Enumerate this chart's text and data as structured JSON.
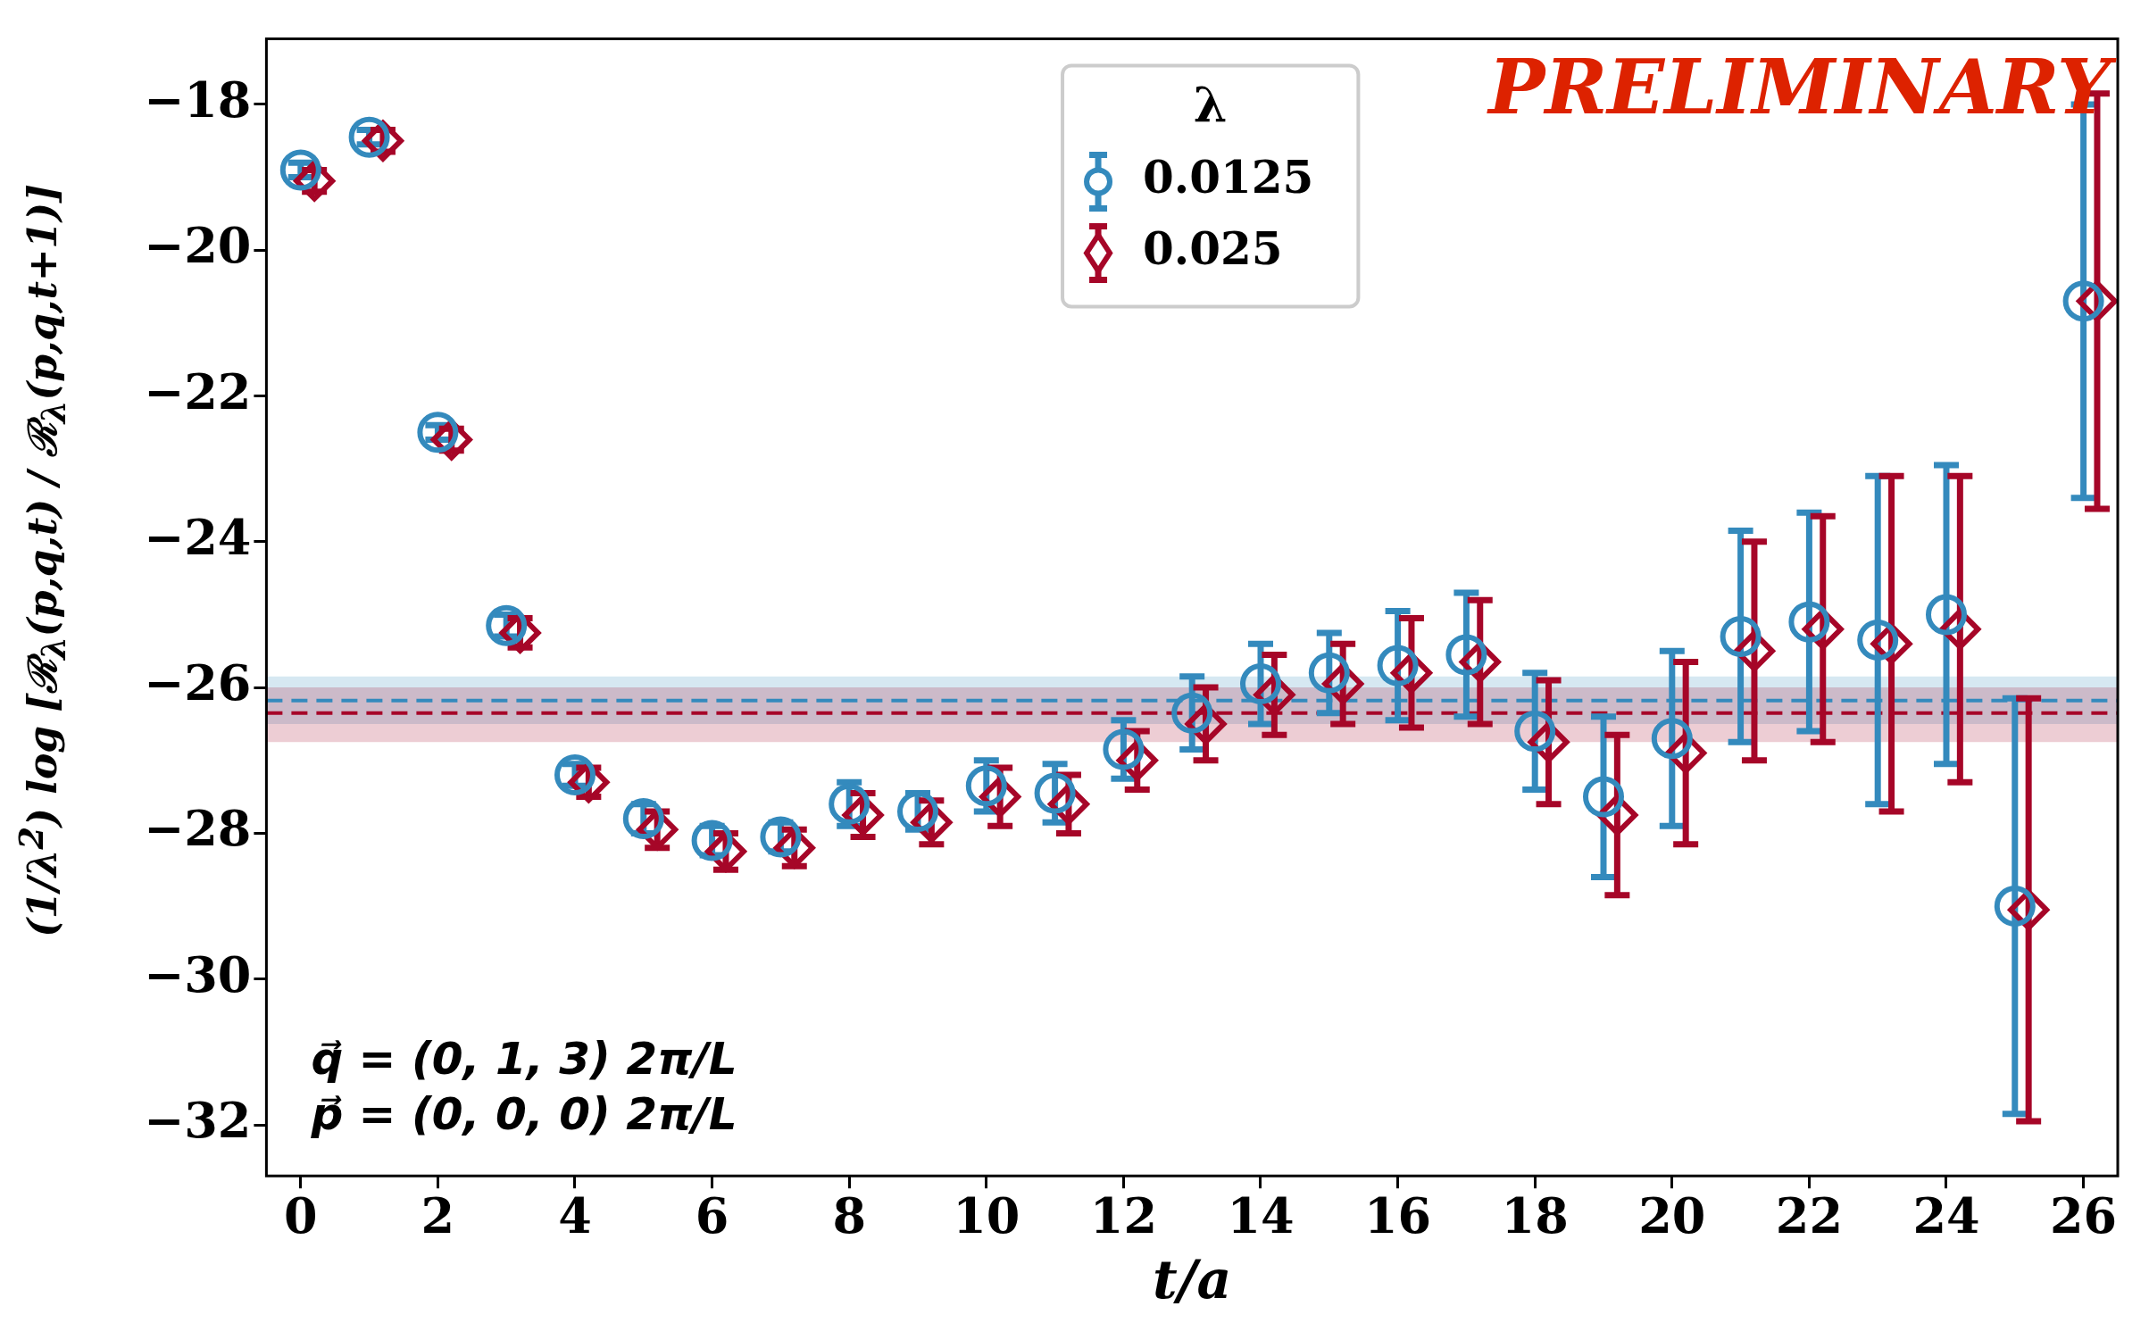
{
  "chart_data": {
    "type": "scatter",
    "xlabel": "t/a",
    "ylabel": "(1/λ$^{2}$) log [ℛ$_{λ}$(p,q,t) / ℛ$_{λ}$(p,q,t+1)]",
    "legend_title": "λ",
    "legend": "top",
    "xlim": [
      -0.5,
      26.5
    ],
    "xticks": [
      0,
      2,
      4,
      6,
      8,
      10,
      12,
      14,
      16,
      18,
      20,
      22,
      24,
      26
    ],
    "ylim": [
      -32.7,
      -17.1
    ],
    "yticks": [
      -18,
      -20,
      -22,
      -24,
      -26,
      -28,
      -30,
      -32
    ],
    "series": [
      {
        "name": "0.0125",
        "color": "#348abd",
        "marker": "circle",
        "x": [
          0,
          1,
          2,
          3,
          4,
          5,
          6,
          7,
          8,
          9,
          10,
          11,
          12,
          13,
          14,
          15,
          16,
          17,
          18,
          19,
          20,
          21,
          22,
          23,
          24,
          25,
          26
        ],
        "values": [
          -18.9,
          -18.45,
          -22.5,
          -25.15,
          -27.2,
          -27.8,
          -28.1,
          -28.05,
          -27.6,
          -27.7,
          -27.35,
          -27.45,
          -26.85,
          -26.35,
          -25.95,
          -25.8,
          -25.7,
          -25.55,
          -26.6,
          -27.5,
          -26.7,
          -25.3,
          -25.1,
          -25.35,
          -25.0,
          -29.0,
          -20.7
        ],
        "errors": [
          0.1,
          0.1,
          0.1,
          0.15,
          0.15,
          0.2,
          0.2,
          0.2,
          0.3,
          0.25,
          0.35,
          0.4,
          0.4,
          0.5,
          0.55,
          0.55,
          0.75,
          0.85,
          0.8,
          1.1,
          1.2,
          1.45,
          1.5,
          2.25,
          2.05,
          2.85,
          2.7
        ]
      },
      {
        "name": "0.025",
        "color": "#a60628",
        "marker": "diamond",
        "x": [
          0.2,
          1.2,
          2.2,
          3.2,
          4.2,
          5.2,
          6.2,
          7.2,
          8.2,
          9.2,
          10.2,
          11.2,
          12.2,
          13.2,
          14.2,
          15.2,
          16.2,
          17.2,
          18.2,
          19.2,
          20.2,
          21.2,
          22.2,
          23.2,
          24.2,
          25.2,
          26.2
        ],
        "values": [
          -19.05,
          -18.5,
          -22.6,
          -25.25,
          -27.3,
          -27.95,
          -28.25,
          -28.2,
          -27.75,
          -27.85,
          -27.5,
          -27.6,
          -27.0,
          -26.5,
          -26.1,
          -25.95,
          -25.8,
          -25.65,
          -26.75,
          -27.75,
          -26.9,
          -25.5,
          -25.2,
          -25.4,
          -25.2,
          -29.05,
          -20.7
        ],
        "errors": [
          0.15,
          0.15,
          0.15,
          0.2,
          0.2,
          0.25,
          0.25,
          0.25,
          0.3,
          0.3,
          0.4,
          0.4,
          0.4,
          0.5,
          0.55,
          0.55,
          0.75,
          0.85,
          0.85,
          1.1,
          1.25,
          1.5,
          1.55,
          2.3,
          2.1,
          2.9,
          2.85
        ]
      }
    ],
    "bands": [
      {
        "axis": "y",
        "from": -26.5,
        "to": -25.85,
        "color": "#348abd"
      },
      {
        "axis": "y",
        "from": -26.75,
        "to": -26.0,
        "color": "#a60628"
      }
    ],
    "ref_lines": [
      {
        "axis": "y",
        "value": -26.18,
        "color": "#348abd",
        "line_style": "dashed"
      },
      {
        "axis": "y",
        "value": -26.35,
        "color": "#a60628",
        "line_style": "dashed"
      }
    ],
    "annotations": [
      "PRELIMINARY",
      "q⃗ = (0, 1, 3) 2π/L",
      "p⃗ = (0, 0, 0) 2π/L"
    ]
  }
}
